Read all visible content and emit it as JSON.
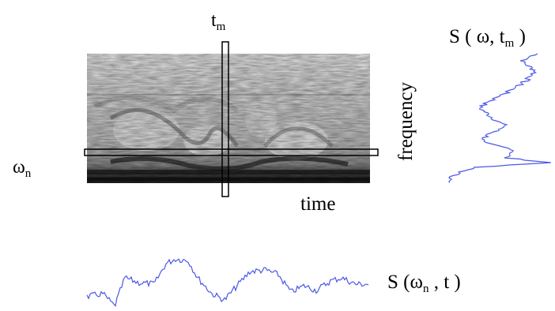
{
  "labels": {
    "t_m": {
      "base": "t",
      "sub": "m"
    },
    "omega_n": {
      "base": "ω",
      "sub": "n"
    },
    "frequency": "frequency",
    "time": "time",
    "s_omega_tm": {
      "prefix": "S ( ω, t",
      "sub": "m",
      "suffix": " )"
    },
    "s_omegan_t": {
      "prefix": "S (ω",
      "sub": "n",
      "suffix": " , t )"
    }
  },
  "colors": {
    "trace": "#4a58e6",
    "cursor_outline": "#000000",
    "spectrogram_dark": "#1e1e1e",
    "spectrogram_light": "#f2f2f2"
  }
}
